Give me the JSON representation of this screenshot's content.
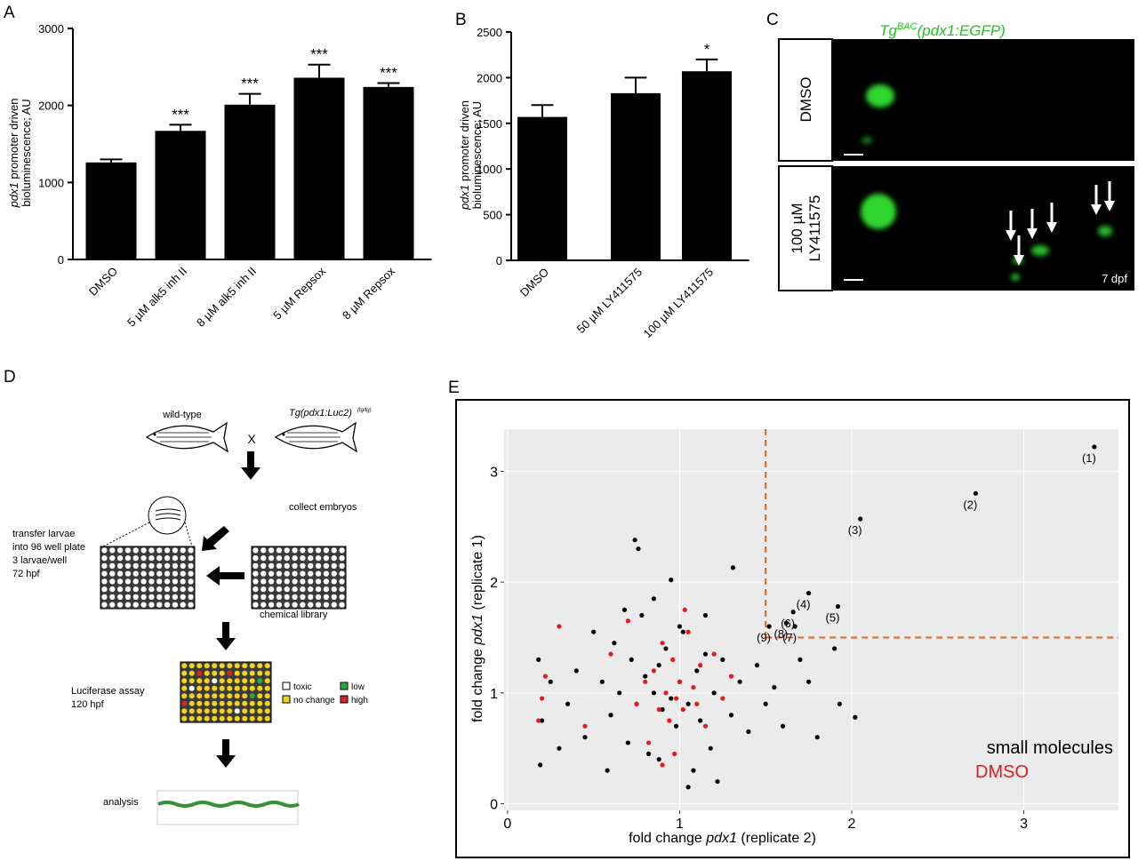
{
  "panel_labels": [
    "A",
    "B",
    "C",
    "D",
    "E"
  ],
  "chart_data": [
    {
      "type": "bar",
      "y_label": {
        "italic": "pdx1",
        "rest": " promoter driven",
        "line2": "bioluminescence; AU"
      },
      "categories": [
        "DMSO",
        "5 µM alk5 inh II",
        "8 µM alk5 inh II",
        "5 µM Repsox",
        "8 µM Repsox"
      ],
      "values": [
        1260,
        1670,
        2010,
        2360,
        2240
      ],
      "errors": [
        40,
        80,
        140,
        170,
        50
      ],
      "annotations": [
        null,
        "***",
        "***",
        "***",
        "***"
      ],
      "color": "#000000",
      "ylim": [
        0,
        3000
      ],
      "yticks": [
        0,
        1000,
        2000,
        3000
      ]
    },
    {
      "type": "bar",
      "y_label": {
        "italic": "pdx1",
        "rest": " promoter driven",
        "line2": "bioluminescence; AU"
      },
      "categories": [
        "DMSO",
        "50 µM LY411575",
        "100 µM LY411575"
      ],
      "values": [
        1570,
        1830,
        2070
      ],
      "errors": [
        130,
        170,
        130
      ],
      "annotations": [
        null,
        null,
        "*"
      ],
      "color": "#000000",
      "ylim": [
        0,
        2500
      ],
      "yticks": [
        0,
        500,
        1000,
        1500,
        2000,
        2500
      ]
    },
    {
      "type": "scatter",
      "x_label": {
        "before": "fold change ",
        "italic": "pdx1",
        "after": " (replicate 2)"
      },
      "y_label": {
        "before": "fold change ",
        "italic": "pdx1",
        "after": " (replicate 1)"
      },
      "xlim": [
        -0.02,
        3.55
      ],
      "ylim": [
        -0.06,
        3.38
      ],
      "xticks": [
        0,
        1,
        2,
        3
      ],
      "yticks": [
        0,
        1,
        2,
        3
      ],
      "grid": true,
      "legend": "bottom-right",
      "thresholds": {
        "x": 1.5,
        "y": 1.5
      },
      "threshold_color": "#e8601c",
      "series": [
        {
          "name": "small molecules",
          "color": "#000000",
          "x": [
            0.18,
            0.2,
            0.19,
            0.25,
            0.3,
            0.35,
            0.4,
            0.45,
            0.5,
            0.55,
            0.6,
            0.62,
            0.65,
            0.7,
            0.72,
            0.75,
            0.78,
            0.8,
            0.82,
            0.85,
            0.88,
            0.9,
            0.92,
            0.95,
            0.98,
            1.0,
            1.02,
            1.05,
            1.08,
            1.1,
            1.12,
            1.15,
            1.18,
            1.2,
            1.25,
            1.3,
            1.35,
            1.4,
            1.45,
            1.5,
            1.55,
            1.6,
            1.7,
            1.75,
            1.8,
            1.9,
            1.93,
            2.02,
            0.74,
            0.76,
            0.95,
            1.31,
            0.58,
            0.68,
            1.22,
            1.05,
            0.85,
            0.88,
            1.0,
            1.15,
            3.41,
            2.72,
            2.05,
            1.75,
            1.92,
            1.66,
            1.67,
            1.62,
            1.52
          ],
          "values": [
            1.3,
            0.75,
            0.35,
            1.1,
            0.5,
            0.9,
            1.2,
            0.6,
            1.55,
            1.1,
            0.8,
            1.45,
            1.0,
            0.55,
            1.3,
            0.9,
            1.7,
            1.15,
            0.45,
            1.0,
            1.25,
            0.85,
            1.4,
            0.95,
            0.7,
            1.1,
            1.55,
            0.9,
            0.3,
            1.2,
            0.75,
            1.35,
            0.5,
            1.0,
            1.3,
            0.8,
            1.1,
            0.65,
            1.25,
            0.9,
            1.05,
            0.7,
            1.3,
            1.1,
            0.6,
            1.4,
            0.9,
            0.78,
            2.38,
            2.3,
            2.02,
            2.13,
            0.3,
            1.75,
            0.2,
            0.15,
            1.85,
            0.4,
            1.6,
            1.7,
            3.22,
            2.8,
            2.57,
            1.9,
            1.78,
            1.73,
            1.6,
            1.63,
            1.6
          ],
          "labels": [
            null,
            null,
            null,
            null,
            null,
            null,
            null,
            null,
            null,
            null,
            null,
            null,
            null,
            null,
            null,
            null,
            null,
            null,
            null,
            null,
            null,
            null,
            null,
            null,
            null,
            null,
            null,
            null,
            null,
            null,
            null,
            null,
            null,
            null,
            null,
            null,
            null,
            null,
            null,
            null,
            null,
            null,
            null,
            null,
            null,
            null,
            null,
            null,
            null,
            null,
            null,
            null,
            null,
            null,
            null,
            null,
            null,
            null,
            null,
            null,
            "(1)",
            "(2)",
            "(3)",
            "(4)",
            "(5)",
            "(6)",
            "(7)",
            "(8)",
            "(9)"
          ]
        },
        {
          "name": "DMSO",
          "color": "#e41a1c",
          "x": [
            0.18,
            0.2,
            0.22,
            0.3,
            0.45,
            0.6,
            0.7,
            0.75,
            0.8,
            0.82,
            0.85,
            0.88,
            0.9,
            0.92,
            0.94,
            0.96,
            0.98,
            1.0,
            1.02,
            1.05,
            1.08,
            1.1,
            1.12,
            1.15,
            1.2,
            1.25,
            1.3,
            0.9,
            0.97,
            1.03
          ],
          "values": [
            0.75,
            0.95,
            1.15,
            1.6,
            0.7,
            1.35,
            1.65,
            0.9,
            1.1,
            0.55,
            1.2,
            0.85,
            1.45,
            1.0,
            0.75,
            1.3,
            0.95,
            1.1,
            0.85,
            1.55,
            1.05,
            0.9,
            1.25,
            0.7,
            1.35,
            0.95,
            1.15,
            0.35,
            0.45,
            1.75
          ]
        }
      ]
    }
  ],
  "micrograph": {
    "title_main": "Tg",
    "title_sup": "BAC",
    "title_rest": "(pdx1:EGFP)",
    "row1": "DMSO",
    "row2_line1": "100 µM",
    "row2_line2": "LY411575",
    "stage": "7 dpf"
  },
  "diagram": {
    "wild_type": "wild-type",
    "tg": "Tg(pdx1:Luc2)",
    "tg_sup": "(tg/tg)",
    "cross": "X",
    "collect": "collect embryos",
    "transfer": [
      "transfer larvae",
      "into 96 well plate",
      "3 larvae/well",
      "72 hpf"
    ],
    "library": "chemical library",
    "assay": [
      "Luciferase assay",
      "120 hpf"
    ],
    "legend": [
      "toxic",
      "no change",
      "low",
      "high"
    ],
    "analysis": "analysis"
  }
}
